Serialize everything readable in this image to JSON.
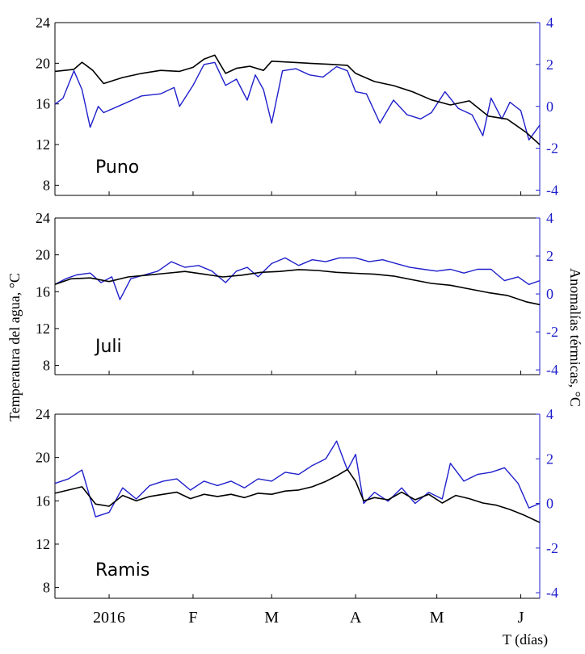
{
  "chart_data": {
    "type": "line",
    "y_left_label": "Temperatura del agua, °C",
    "y_right_label": "Anomalías térmicas, °C",
    "x_label": "T (días)",
    "x_range": [
      "2015-12-12",
      "2016-06-08"
    ],
    "x_ticks": [
      {
        "label": "2016",
        "date": "2016-01-01"
      },
      {
        "label": "F",
        "date": "2016-02-01"
      },
      {
        "label": "M",
        "date": "2016-03-01"
      },
      {
        "label": "A",
        "date": "2016-04-01"
      },
      {
        "label": "M",
        "date": "2016-05-01"
      },
      {
        "label": "J",
        "date": "2016-06-01"
      }
    ],
    "y_left_ticks": [
      "24",
      "20",
      "16",
      "12",
      "8"
    ],
    "y_right_ticks": [
      "4",
      "2",
      "0",
      "-2",
      "-4"
    ],
    "y_left_range": [
      7,
      24
    ],
    "y_right_range": [
      -4.25,
      4
    ],
    "grid": false,
    "colors": {
      "temperature": "#000000",
      "anomaly": "#1f1fcc"
    },
    "panels": [
      {
        "station": "Puno",
        "temperature": {
          "dates": [
            "2015-12-12",
            "2015-12-19",
            "2015-12-22",
            "2015-12-26",
            "2015-12-30",
            "2016-01-06",
            "2016-01-13",
            "2016-01-20",
            "2016-01-27",
            "2016-02-01",
            "2016-02-05",
            "2016-02-09",
            "2016-02-13",
            "2016-02-17",
            "2016-02-22",
            "2016-02-27",
            "2016-03-01",
            "2016-03-08",
            "2016-03-15",
            "2016-03-22",
            "2016-03-29",
            "2016-04-01",
            "2016-04-08",
            "2016-04-15",
            "2016-04-22",
            "2016-04-29",
            "2016-05-06",
            "2016-05-13",
            "2016-05-20",
            "2016-05-27",
            "2016-06-03",
            "2016-06-08"
          ],
          "values": [
            19.2,
            19.4,
            20.1,
            19.3,
            18.0,
            18.6,
            19.0,
            19.3,
            19.2,
            19.6,
            20.4,
            20.8,
            19.0,
            19.5,
            19.7,
            19.3,
            20.2,
            20.1,
            20.0,
            19.9,
            19.8,
            19.0,
            18.2,
            17.8,
            17.2,
            16.4,
            15.9,
            16.3,
            14.8,
            14.5,
            13.2,
            12.0
          ]
        },
        "anomaly": {
          "dates": [
            "2015-12-12",
            "2015-12-15",
            "2015-12-19",
            "2015-12-22",
            "2015-12-25",
            "2015-12-28",
            "2015-12-30",
            "2016-01-06",
            "2016-01-13",
            "2016-01-20",
            "2016-01-25",
            "2016-01-27",
            "2016-02-01",
            "2016-02-05",
            "2016-02-09",
            "2016-02-13",
            "2016-02-17",
            "2016-02-21",
            "2016-02-24",
            "2016-02-27",
            "2016-03-01",
            "2016-03-05",
            "2016-03-10",
            "2016-03-15",
            "2016-03-20",
            "2016-03-25",
            "2016-03-29",
            "2016-04-01",
            "2016-04-05",
            "2016-04-10",
            "2016-04-15",
            "2016-04-20",
            "2016-04-25",
            "2016-04-29",
            "2016-05-04",
            "2016-05-09",
            "2016-05-14",
            "2016-05-18",
            "2016-05-21",
            "2016-05-25",
            "2016-05-28",
            "2016-06-01",
            "2016-06-04",
            "2016-06-08"
          ],
          "values": [
            0.1,
            0.4,
            1.7,
            0.8,
            -1.0,
            0.0,
            -0.3,
            0.1,
            0.5,
            0.6,
            0.9,
            0.0,
            1.0,
            2.0,
            2.1,
            1.0,
            1.3,
            0.3,
            1.5,
            0.8,
            -0.8,
            1.7,
            1.8,
            1.5,
            1.4,
            1.9,
            1.7,
            0.7,
            0.6,
            -0.8,
            0.3,
            -0.4,
            -0.6,
            -0.3,
            0.7,
            -0.1,
            -0.4,
            -1.4,
            0.4,
            -0.6,
            0.2,
            -0.2,
            -1.6,
            -0.9
          ]
        }
      },
      {
        "station": "Juli",
        "temperature": {
          "dates": [
            "2015-12-12",
            "2015-12-18",
            "2015-12-25",
            "2016-01-01",
            "2016-01-08",
            "2016-01-15",
            "2016-01-22",
            "2016-01-29",
            "2016-02-05",
            "2016-02-12",
            "2016-02-19",
            "2016-02-26",
            "2016-03-04",
            "2016-03-11",
            "2016-03-18",
            "2016-03-25",
            "2016-04-01",
            "2016-04-08",
            "2016-04-15",
            "2016-04-22",
            "2016-04-29",
            "2016-05-06",
            "2016-05-13",
            "2016-05-20",
            "2016-05-27",
            "2016-06-03",
            "2016-06-08"
          ],
          "values": [
            16.8,
            17.4,
            17.5,
            17.1,
            17.6,
            17.8,
            18.0,
            18.2,
            17.9,
            17.6,
            17.8,
            18.1,
            18.2,
            18.4,
            18.3,
            18.1,
            18.0,
            17.9,
            17.7,
            17.3,
            16.9,
            16.7,
            16.3,
            15.9,
            15.6,
            14.9,
            14.6
          ]
        },
        "anomaly": {
          "dates": [
            "2015-12-12",
            "2015-12-16",
            "2015-12-20",
            "2015-12-25",
            "2015-12-29",
            "2016-01-02",
            "2016-01-05",
            "2016-01-09",
            "2016-01-14",
            "2016-01-19",
            "2016-01-24",
            "2016-01-29",
            "2016-02-03",
            "2016-02-08",
            "2016-02-13",
            "2016-02-17",
            "2016-02-21",
            "2016-02-25",
            "2016-03-01",
            "2016-03-06",
            "2016-03-11",
            "2016-03-16",
            "2016-03-21",
            "2016-03-26",
            "2016-04-01",
            "2016-04-06",
            "2016-04-11",
            "2016-04-16",
            "2016-04-21",
            "2016-04-26",
            "2016-05-01",
            "2016-05-06",
            "2016-05-11",
            "2016-05-16",
            "2016-05-21",
            "2016-05-26",
            "2016-05-31",
            "2016-06-04",
            "2016-06-08"
          ],
          "values": [
            0.5,
            0.8,
            1.0,
            1.1,
            0.6,
            0.9,
            -0.3,
            0.8,
            1.0,
            1.2,
            1.7,
            1.4,
            1.5,
            1.2,
            0.6,
            1.2,
            1.4,
            0.9,
            1.6,
            1.9,
            1.5,
            1.8,
            1.7,
            1.9,
            1.9,
            1.7,
            1.8,
            1.6,
            1.4,
            1.3,
            1.2,
            1.3,
            1.1,
            1.3,
            1.3,
            0.7,
            0.9,
            0.5,
            0.7
          ]
        }
      },
      {
        "station": "Ramis",
        "temperature": {
          "dates": [
            "2015-12-12",
            "2015-12-17",
            "2015-12-22",
            "2015-12-27",
            "2016-01-01",
            "2016-01-06",
            "2016-01-11",
            "2016-01-16",
            "2016-01-21",
            "2016-01-26",
            "2016-01-31",
            "2016-02-05",
            "2016-02-10",
            "2016-02-15",
            "2016-02-20",
            "2016-02-25",
            "2016-03-01",
            "2016-03-06",
            "2016-03-11",
            "2016-03-16",
            "2016-03-21",
            "2016-03-25",
            "2016-03-29",
            "2016-04-01",
            "2016-04-04",
            "2016-04-08",
            "2016-04-13",
            "2016-04-18",
            "2016-04-23",
            "2016-04-28",
            "2016-05-03",
            "2016-05-08",
            "2016-05-13",
            "2016-05-18",
            "2016-05-23",
            "2016-05-28",
            "2016-06-02",
            "2016-06-08"
          ],
          "values": [
            16.7,
            17.0,
            17.3,
            15.7,
            15.5,
            16.5,
            16.0,
            16.4,
            16.6,
            16.8,
            16.2,
            16.6,
            16.4,
            16.6,
            16.3,
            16.7,
            16.6,
            16.9,
            17.0,
            17.3,
            17.8,
            18.3,
            18.9,
            17.8,
            16.0,
            16.3,
            16.1,
            16.8,
            16.1,
            16.6,
            15.8,
            16.5,
            16.2,
            15.8,
            15.6,
            15.2,
            14.7,
            14.0
          ]
        },
        "anomaly": {
          "dates": [
            "2015-12-12",
            "2015-12-17",
            "2015-12-22",
            "2015-12-27",
            "2016-01-01",
            "2016-01-06",
            "2016-01-11",
            "2016-01-16",
            "2016-01-21",
            "2016-01-26",
            "2016-01-31",
            "2016-02-05",
            "2016-02-10",
            "2016-02-15",
            "2016-02-20",
            "2016-02-25",
            "2016-03-01",
            "2016-03-06",
            "2016-03-11",
            "2016-03-16",
            "2016-03-21",
            "2016-03-25",
            "2016-03-29",
            "2016-04-01",
            "2016-04-04",
            "2016-04-08",
            "2016-04-13",
            "2016-04-18",
            "2016-04-23",
            "2016-04-28",
            "2016-05-03",
            "2016-05-06",
            "2016-05-11",
            "2016-05-16",
            "2016-05-21",
            "2016-05-26",
            "2016-05-31",
            "2016-06-04",
            "2016-06-08"
          ],
          "values": [
            0.9,
            1.1,
            1.5,
            -0.6,
            -0.4,
            0.7,
            0.2,
            0.8,
            1.0,
            1.1,
            0.6,
            1.0,
            0.8,
            1.0,
            0.7,
            1.1,
            1.0,
            1.4,
            1.3,
            1.7,
            2.0,
            2.8,
            1.5,
            2.2,
            0.0,
            0.5,
            0.1,
            0.7,
            0.0,
            0.5,
            0.2,
            1.8,
            1.0,
            1.3,
            1.4,
            1.6,
            0.9,
            -0.2,
            0.0
          ]
        }
      }
    ]
  }
}
